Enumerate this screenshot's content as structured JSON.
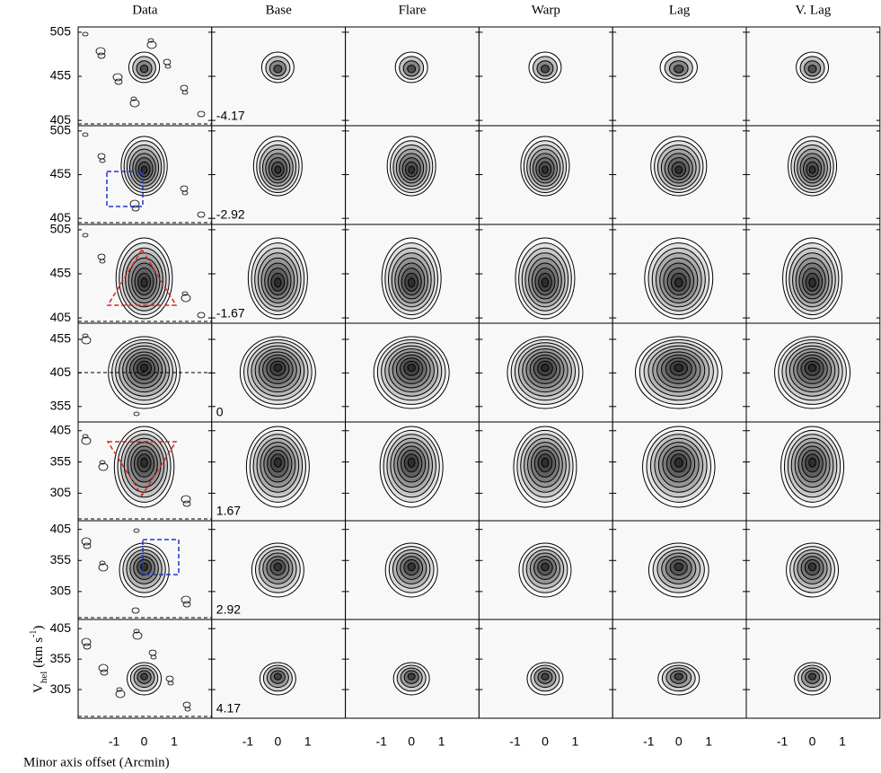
{
  "chart_data": {
    "type": "panel-grid",
    "columns": [
      "Data",
      "Base",
      "Flare",
      "Warp",
      "Lag",
      "V. Lag"
    ],
    "row_labels": [
      -4.17,
      -2.92,
      -1.67,
      0,
      1.67,
      2.92,
      4.17
    ],
    "xlim": [
      -2.2,
      2.25
    ],
    "xticks": [
      -1,
      0,
      1
    ],
    "rows": [
      {
        "ylim": [
          399,
          511
        ],
        "yticks": [
          405,
          455,
          505
        ]
      },
      {
        "ylim": [
          398,
          511
        ],
        "yticks": [
          405,
          455,
          505
        ]
      },
      {
        "ylim": [
          399,
          511
        ],
        "yticks": [
          405,
          455,
          505
        ]
      },
      {
        "ylim": [
          332,
          479
        ],
        "yticks": [
          355,
          405,
          455
        ]
      },
      {
        "ylim": [
          261,
          419
        ],
        "yticks": [
          305,
          355,
          405
        ]
      },
      {
        "ylim": [
          260,
          419
        ],
        "yticks": [
          305,
          355,
          405
        ]
      },
      {
        "ylim": [
          258,
          420
        ],
        "yticks": [
          305,
          355,
          405
        ]
      }
    ],
    "x_label": "Minor axis offset (Arcmin)",
    "y_label": {
      "main": "V",
      "sub": "hel",
      "unit": "(km s",
      "sup": "-1",
      "close": ")"
    }
  }
}
